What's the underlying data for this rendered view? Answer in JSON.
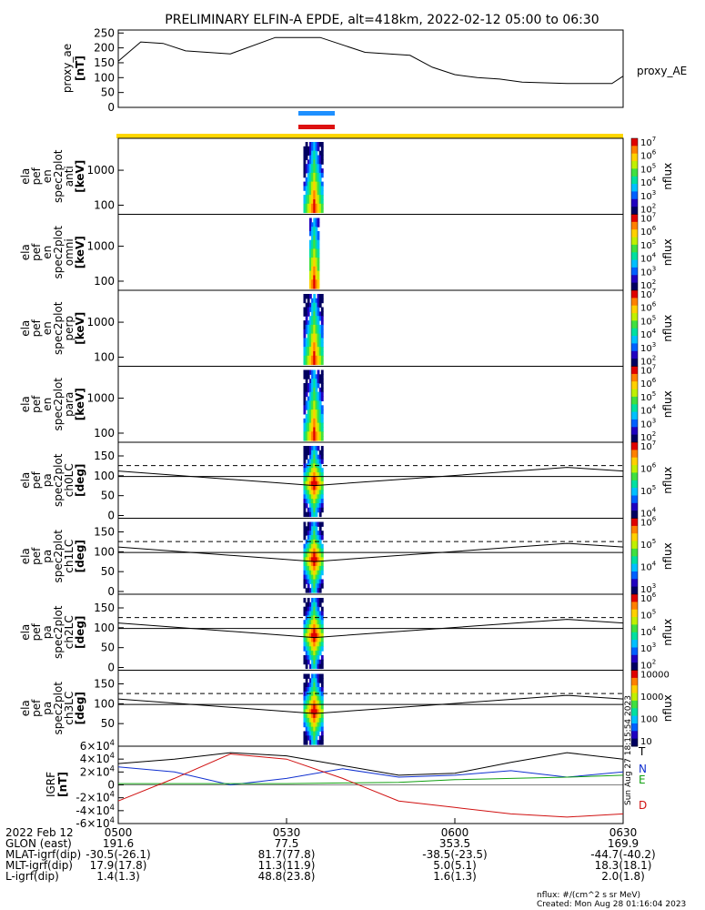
{
  "title": "PRELIMINARY ELFIN-A EPDE, alt=418km, 2022-02-12 05:00 to 06:30",
  "ae_panel": {
    "ylabel": [
      "proxy_ae",
      "[nT]"
    ],
    "legend": "proxy_AE",
    "ticks": [
      "250",
      "200",
      "150",
      "100",
      "50",
      "0"
    ],
    "tick_values": [
      250,
      200,
      150,
      100,
      50,
      0
    ],
    "ylim": [
      0,
      260
    ],
    "x": [
      0,
      4,
      8,
      12,
      20,
      28,
      36,
      44,
      52,
      56,
      60,
      64,
      68,
      72,
      80,
      88,
      90
    ],
    "values": [
      155,
      220,
      215,
      190,
      180,
      235,
      235,
      185,
      175,
      135,
      110,
      100,
      95,
      85,
      80,
      80,
      105
    ]
  },
  "spec_panels": [
    {
      "ylabel": [
        "ela",
        "pef",
        "en",
        "spec2plot",
        "anti",
        "[keV]"
      ],
      "ticks": [
        "1000",
        "100"
      ],
      "cbar_ticks": [
        "10^7",
        "10^6",
        "10^5",
        "10^4",
        "10^3",
        "10^2"
      ],
      "cbar_label": "nflux",
      "type": "energy"
    },
    {
      "ylabel": [
        "ela",
        "pef",
        "en",
        "spec2plot",
        "omni",
        "[keV]"
      ],
      "ticks": [
        "1000",
        "100"
      ],
      "cbar_ticks": [
        "10^7",
        "10^6",
        "10^5",
        "10^4",
        "10^3",
        "10^2"
      ],
      "cbar_label": "nflux",
      "type": "energy"
    },
    {
      "ylabel": [
        "ela",
        "pef",
        "en",
        "spec2plot",
        "perp",
        "[keV]"
      ],
      "ticks": [
        "1000",
        "100"
      ],
      "cbar_ticks": [
        "10^7",
        "10^6",
        "10^5",
        "10^4",
        "10^3",
        "10^2"
      ],
      "cbar_label": "nflux",
      "type": "energy"
    },
    {
      "ylabel": [
        "ela",
        "pef",
        "en",
        "spec2plot",
        "para",
        "[keV]"
      ],
      "ticks": [
        "1000",
        "100"
      ],
      "cbar_ticks": [
        "10^7",
        "10^6",
        "10^5",
        "10^4",
        "10^3",
        "10^2"
      ],
      "cbar_label": "nflux",
      "type": "energy"
    },
    {
      "ylabel": [
        "ela",
        "pef",
        "pa",
        "spec2plot",
        "ch0LC",
        "[deg]"
      ],
      "ticks": [
        "150",
        "100",
        "50",
        "0"
      ],
      "cbar_ticks": [
        "10^7",
        "10^6",
        "10^5",
        "10^4"
      ],
      "cbar_label": "nflux",
      "type": "pa"
    },
    {
      "ylabel": [
        "ela",
        "pef",
        "pa",
        "spec2plot",
        "ch1LC",
        "[deg]"
      ],
      "ticks": [
        "150",
        "100",
        "50",
        "0"
      ],
      "cbar_ticks": [
        "10^6",
        "10^5",
        "10^4",
        "10^3"
      ],
      "cbar_label": "nflux",
      "type": "pa"
    },
    {
      "ylabel": [
        "ela",
        "pef",
        "pa",
        "spec2plot",
        "ch2LC",
        "[deg]"
      ],
      "ticks": [
        "150",
        "100",
        "50",
        "0"
      ],
      "cbar_ticks": [
        "10^6",
        "10^5",
        "10^4",
        "10^3",
        "10^2"
      ],
      "cbar_label": "nflux",
      "type": "pa"
    },
    {
      "ylabel": [
        "ela",
        "pef",
        "pa",
        "spec2plot",
        "ch3LC",
        "[deg]"
      ],
      "ticks": [
        "150",
        "100",
        "50"
      ],
      "cbar_ticks": [
        "10000",
        "1000",
        "100",
        "10"
      ],
      "cbar_label": "nflux",
      "type": "pa"
    }
  ],
  "igrf_panel": {
    "ylabel": [
      "IGRF",
      "[nT]"
    ],
    "ticks": [
      "6×10^4",
      "4×10^4",
      "2×10^4",
      "0",
      "-2×10^4",
      "-4×10^4",
      "-6×10^4"
    ],
    "tick_values": [
      60000,
      40000,
      20000,
      0,
      -20000,
      -40000,
      -60000
    ],
    "ylim": [
      -60000,
      60000
    ],
    "legend": [
      "T",
      "N",
      "E",
      "D"
    ],
    "series": [
      {
        "name": "T",
        "color": "#000000",
        "x": [
          0,
          10,
          20,
          30,
          40,
          50,
          60,
          70,
          80,
          90
        ],
        "values": [
          33000,
          40000,
          50000,
          45000,
          30000,
          15000,
          18000,
          35000,
          50000,
          40000
        ]
      },
      {
        "name": "N",
        "color": "#1030d0",
        "x": [
          0,
          10,
          20,
          30,
          40,
          50,
          60,
          70,
          80,
          90
        ],
        "values": [
          28000,
          20000,
          0,
          10000,
          25000,
          12000,
          15000,
          22000,
          12000,
          20000
        ]
      },
      {
        "name": "E",
        "color": "#10a010",
        "x": [
          0,
          10,
          20,
          30,
          40,
          50,
          60,
          70,
          80,
          90
        ],
        "values": [
          2000,
          2000,
          2000,
          2000,
          3000,
          4000,
          8000,
          10000,
          12000,
          15000
        ]
      },
      {
        "name": "D",
        "color": "#d01010",
        "x": [
          0,
          10,
          20,
          30,
          40,
          50,
          60,
          70,
          80,
          90
        ],
        "values": [
          -25000,
          10000,
          48000,
          40000,
          10000,
          -25000,
          -35000,
          -45000,
          -50000,
          -45000
        ]
      }
    ]
  },
  "x_ticks": [
    "0500",
    "0530",
    "0600",
    "0630"
  ],
  "ephemeris_rows": [
    {
      "label": "2022 Feb 12",
      "values": [
        "0500",
        "0530",
        "0600",
        "0630"
      ]
    },
    {
      "label": "GLON (east)",
      "values": [
        "191.6",
        "77.5",
        "353.5",
        "169.9"
      ]
    },
    {
      "label": "MLAT-igrf(dip)",
      "values": [
        "-30.5(-26.1)",
        "81.7(77.8)",
        "-38.5(-23.5)",
        "-44.7(-40.2)"
      ]
    },
    {
      "label": "MLT-igrf(dip)",
      "values": [
        "17.9(17.8)",
        "11.3(11.9)",
        "5.0(5.1)",
        "18.3(18.1)"
      ]
    },
    {
      "label": "L-igrf(dip)",
      "values": [
        "1.4(1.3)",
        "48.8(23.8)",
        "1.6(1.3)",
        "2.0(1.8)"
      ]
    }
  ],
  "footer_units": "nflux: #/(cm^2 s sr MeV)",
  "footer_created": "Created: Mon Aug 28 01:16:04 2023",
  "side_stamp": "Sun Aug 27 18:15:54 2023",
  "colors": {
    "yellow_bar": "#ffd700",
    "blue_bar": "#1e90ff",
    "red_bar": "#dd1111"
  }
}
